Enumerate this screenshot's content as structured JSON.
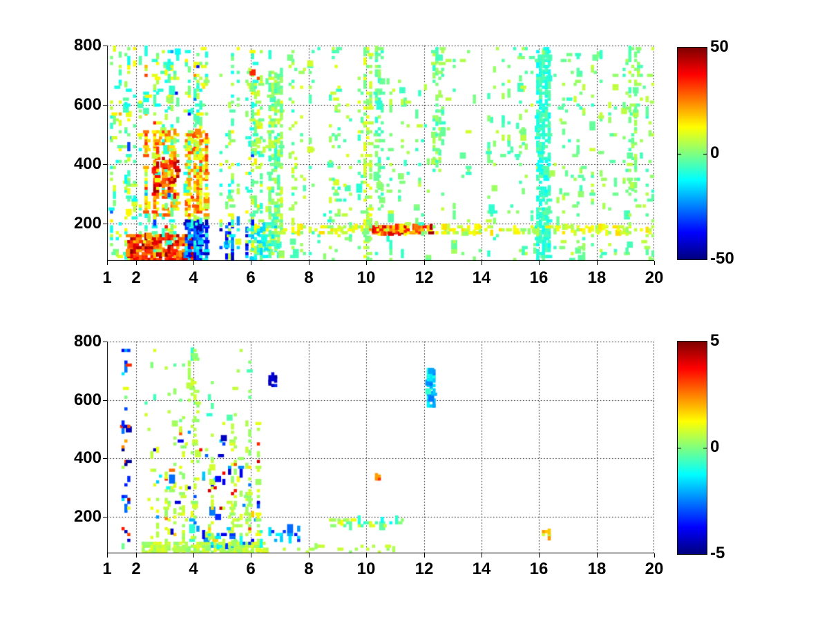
{
  "figure": {
    "background": "#ffffff",
    "text_color": "#000000",
    "axis_color": "#000000",
    "grid_style": "dotted",
    "tick_font_px": 24
  },
  "chart_data": [
    {
      "type": "heatmap",
      "panel": "top",
      "title": "",
      "xlabel": "",
      "ylabel": "",
      "xlim": [
        1,
        20
      ],
      "ylim": [
        75,
        800
      ],
      "xticks": [
        {
          "v": 1,
          "label": "1"
        },
        {
          "v": 2,
          "label": "2"
        },
        {
          "v": 4,
          "label": "4"
        },
        {
          "v": 6,
          "label": "6"
        },
        {
          "v": 8,
          "label": "8"
        },
        {
          "v": 10,
          "label": "10"
        },
        {
          "v": 12,
          "label": "12"
        },
        {
          "v": 14,
          "label": "14"
        },
        {
          "v": 16,
          "label": "16"
        },
        {
          "v": 18,
          "label": "18"
        },
        {
          "v": 20,
          "label": "20"
        }
      ],
      "yticks": [
        {
          "v": 200,
          "label": "200"
        },
        {
          "v": 400,
          "label": "400"
        },
        {
          "v": 600,
          "label": "600"
        },
        {
          "v": 800,
          "label": "800"
        }
      ],
      "grid": true,
      "colormap": "jet",
      "clim": [
        -50,
        50
      ],
      "colorbar_ticks": [
        {
          "v": 50,
          "label": "50"
        },
        {
          "v": 0,
          "label": "0"
        },
        {
          "v": -50,
          "label": "-50"
        }
      ],
      "cell": {
        "dx": 0.1,
        "dy": 10
      },
      "seed": 1337,
      "regions": [
        {
          "name": "left-dense-field",
          "x": [
            1.0,
            6.3
          ],
          "y": [
            75,
            800
          ],
          "density": 0.34,
          "values": [
            -12,
            14
          ],
          "striped": true,
          "fade_bottom": 0.5
        },
        {
          "name": "left-outlier-specks",
          "x": [
            1.0,
            6.3
          ],
          "y": [
            75,
            800
          ],
          "density": 0.03,
          "values": [
            -40,
            40
          ],
          "striped": true
        },
        {
          "name": "mid-field",
          "x": [
            6.3,
            10.2
          ],
          "y": [
            75,
            800
          ],
          "density": 0.12,
          "values": [
            -9,
            10
          ],
          "striped": true
        },
        {
          "name": "right-field",
          "x": [
            10.2,
            20.0
          ],
          "y": [
            75,
            800
          ],
          "density": 0.075,
          "values": [
            -8,
            8
          ],
          "striped": true
        },
        {
          "name": "warm-blob",
          "x": [
            2.2,
            4.9
          ],
          "y": [
            225,
            520
          ],
          "density": 0.4,
          "values": [
            6,
            34
          ],
          "striped": true
        },
        {
          "name": "hot-core",
          "x": [
            2.5,
            3.7
          ],
          "y": [
            290,
            430
          ],
          "density": 0.45,
          "values": [
            18,
            48
          ],
          "striped": true
        },
        {
          "name": "red-bottom-band",
          "x": [
            1.7,
            4.3
          ],
          "y": [
            75,
            165
          ],
          "density": 0.8,
          "values": [
            18,
            50
          ]
        },
        {
          "name": "blue-bottom-band",
          "x": [
            3.5,
            5.9
          ],
          "y": [
            75,
            215
          ],
          "density": 0.6,
          "values": [
            -46,
            -8
          ],
          "striped": true
        },
        {
          "name": "cyan-tail",
          "x": [
            5.9,
            7.0
          ],
          "y": [
            75,
            200
          ],
          "density": 0.4,
          "values": [
            -18,
            -3
          ]
        },
        {
          "name": "streak-y180",
          "x": [
            6.0,
            20.0
          ],
          "y": [
            170,
            196
          ],
          "density": 0.38,
          "values": [
            1,
            16
          ]
        },
        {
          "name": "streak-hot",
          "x": [
            10.1,
            12.3
          ],
          "y": [
            167,
            198
          ],
          "density": 0.85,
          "values": [
            12,
            48
          ]
        },
        {
          "name": "teal-column-16",
          "x": [
            15.95,
            16.45
          ],
          "y": [
            75,
            800
          ],
          "density": 0.55,
          "values": [
            -13,
            -2
          ]
        },
        {
          "name": "column-6.9",
          "x": [
            6.6,
            7.1
          ],
          "y": [
            95,
            720
          ],
          "density": 0.45,
          "values": [
            -9,
            9
          ]
        },
        {
          "name": "column-10",
          "x": [
            9.9,
            10.2
          ],
          "y": [
            75,
            800
          ],
          "density": 0.4,
          "values": [
            -2,
            12
          ]
        },
        {
          "name": "column-10.5",
          "x": [
            10.35,
            10.65
          ],
          "y": [
            250,
            800
          ],
          "density": 0.35,
          "values": [
            -9,
            4
          ]
        },
        {
          "name": "column-12.5",
          "x": [
            12.35,
            12.7
          ],
          "y": [
            380,
            800
          ],
          "density": 0.3,
          "values": [
            -8,
            6
          ]
        },
        {
          "name": "column-19.3",
          "x": [
            19.15,
            19.5
          ],
          "y": [
            280,
            800
          ],
          "density": 0.28,
          "values": [
            -6,
            7
          ]
        }
      ]
    },
    {
      "type": "heatmap",
      "panel": "bottom",
      "title": "",
      "xlabel": "",
      "ylabel": "",
      "xlim": [
        1,
        20
      ],
      "ylim": [
        75,
        800
      ],
      "xticks": [
        {
          "v": 1,
          "label": "1"
        },
        {
          "v": 2,
          "label": "2"
        },
        {
          "v": 4,
          "label": "4"
        },
        {
          "v": 6,
          "label": "6"
        },
        {
          "v": 8,
          "label": "8"
        },
        {
          "v": 10,
          "label": "10"
        },
        {
          "v": 12,
          "label": "12"
        },
        {
          "v": 14,
          "label": "14"
        },
        {
          "v": 16,
          "label": "16"
        },
        {
          "v": 18,
          "label": "18"
        },
        {
          "v": 20,
          "label": "20"
        }
      ],
      "yticks": [
        {
          "v": 200,
          "label": "200"
        },
        {
          "v": 400,
          "label": "400"
        },
        {
          "v": 600,
          "label": "600"
        },
        {
          "v": 800,
          "label": "800"
        }
      ],
      "grid": true,
      "colormap": "jet",
      "clim": [
        -5,
        5
      ],
      "colorbar_ticks": [
        {
          "v": 5,
          "label": "5"
        },
        {
          "v": 0,
          "label": "0"
        },
        {
          "v": -5,
          "label": "-5"
        }
      ],
      "cell": {
        "dx": 0.1,
        "dy": 10
      },
      "seed": 4242,
      "regions": [
        {
          "name": "green-cluster",
          "x": [
            2.4,
            6.3
          ],
          "y": [
            75,
            525
          ],
          "density": 0.32,
          "values": [
            0.1,
            1.1
          ],
          "striped": true,
          "fade_bottom": 0.65
        },
        {
          "name": "bottom-band",
          "x": [
            2.2,
            6.6
          ],
          "y": [
            75,
            112
          ],
          "density": 0.75,
          "values": [
            0.1,
            1.0
          ]
        },
        {
          "name": "bottom-band-ext",
          "x": [
            6.6,
            11.2
          ],
          "y": [
            75,
            108
          ],
          "density": 0.12,
          "values": [
            0.1,
            0.8
          ]
        },
        {
          "name": "column-4-upper",
          "x": [
            3.8,
            4.2
          ],
          "y": [
            525,
            780
          ],
          "density": 0.22,
          "values": [
            0.1,
            0.9
          ]
        },
        {
          "name": "blue-speck-band",
          "x": [
            3.8,
            8.3
          ],
          "y": [
            112,
            168
          ],
          "density": 0.15,
          "values": [
            -3.6,
            -0.7
          ]
        },
        {
          "name": "cluster-blue-specks",
          "x": [
            2.6,
            6.3
          ],
          "y": [
            112,
            500
          ],
          "density": 0.035,
          "values": [
            -4.5,
            -1
          ]
        },
        {
          "name": "cluster-warm-specks",
          "x": [
            2.6,
            6.3
          ],
          "y": [
            112,
            500
          ],
          "density": 0.02,
          "values": [
            1.5,
            4.5
          ]
        },
        {
          "name": "left-column-specks",
          "x": [
            1.5,
            1.85
          ],
          "y": [
            75,
            790
          ],
          "density": 0.16,
          "values": [
            -5,
            5
          ]
        },
        {
          "name": "y180-specks",
          "x": [
            8.7,
            11.3
          ],
          "y": [
            165,
            198
          ],
          "density": 0.3,
          "values": [
            -1.2,
            1.2
          ]
        },
        {
          "name": "cyan-streak-12.3",
          "x": [
            12.15,
            12.4
          ],
          "y": [
            580,
            705
          ],
          "density": 0.8,
          "values": [
            -2.6,
            -0.6
          ]
        },
        {
          "name": "navy-dash-6.7",
          "x": [
            6.6,
            6.9
          ],
          "y": [
            650,
            690
          ],
          "density": 0.7,
          "values": [
            -4.8,
            -3.2
          ]
        },
        {
          "name": "speck-16.2",
          "x": [
            16.1,
            16.4
          ],
          "y": [
            125,
            155
          ],
          "density": 0.5,
          "values": [
            0.5,
            2.5
          ]
        },
        {
          "name": "sparse-upper",
          "x": [
            2.3,
            6.5
          ],
          "y": [
            525,
            790
          ],
          "density": 0.05,
          "values": [
            -0.9,
            0.9
          ],
          "striped": true
        },
        {
          "name": "speck-10.4",
          "x": [
            10.3,
            10.55
          ],
          "y": [
            325,
            360
          ],
          "density": 0.7,
          "values": [
            1.2,
            3.5
          ]
        },
        {
          "name": "bottom-blue-specks",
          "x": [
            4.3,
            6.4
          ],
          "y": [
            95,
            120
          ],
          "density": 0.22,
          "values": [
            -3.5,
            -1
          ]
        }
      ]
    }
  ]
}
